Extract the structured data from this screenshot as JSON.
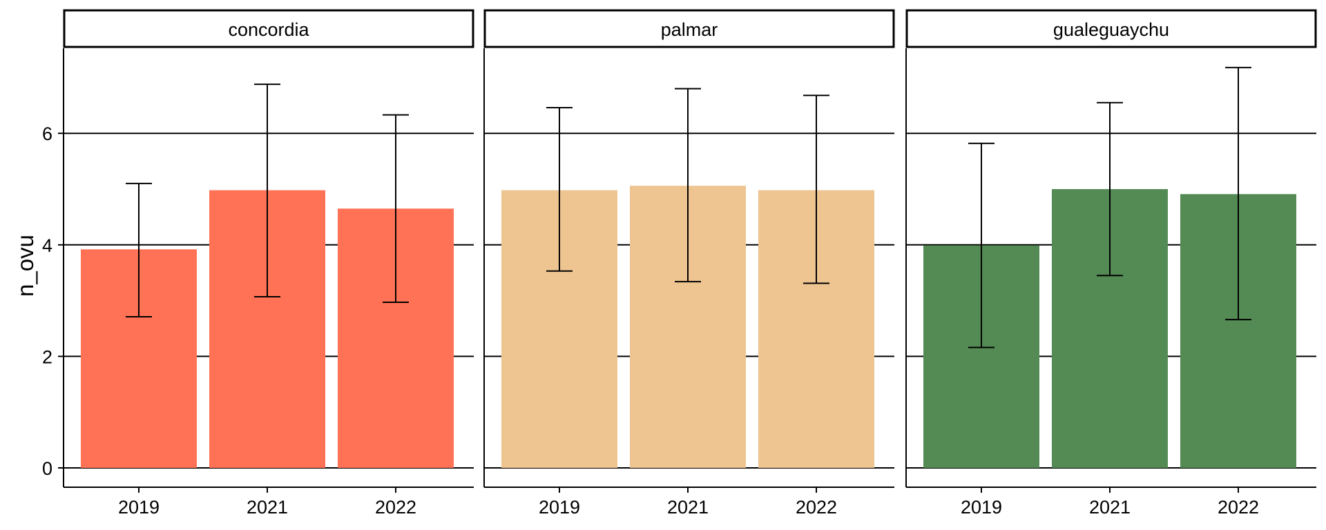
{
  "chart_data": {
    "type": "bar",
    "ylabel": "n_ovu",
    "ylim": [
      0,
      7.5
    ],
    "yticks": [
      0,
      2,
      4,
      6
    ],
    "grid": "horizontal major lines",
    "categories": [
      "2019",
      "2021",
      "2022"
    ],
    "panels": [
      {
        "name": "concordia",
        "color": "#FF7256",
        "values": [
          3.92,
          4.98,
          4.65
        ],
        "error_low": [
          2.71,
          3.07,
          2.97
        ],
        "error_high": [
          5.1,
          6.88,
          6.33
        ]
      },
      {
        "name": "palmar",
        "color": "#EEC591",
        "values": [
          4.98,
          5.06,
          4.98
        ],
        "error_low": [
          3.53,
          3.34,
          3.31
        ],
        "error_high": [
          6.46,
          6.8,
          6.68
        ]
      },
      {
        "name": "gualeguaychu",
        "color": "#548B54",
        "values": [
          3.99,
          5.0,
          4.91
        ],
        "error_low": [
          2.16,
          3.45,
          2.66
        ],
        "error_high": [
          5.82,
          6.55,
          7.18
        ]
      }
    ]
  }
}
